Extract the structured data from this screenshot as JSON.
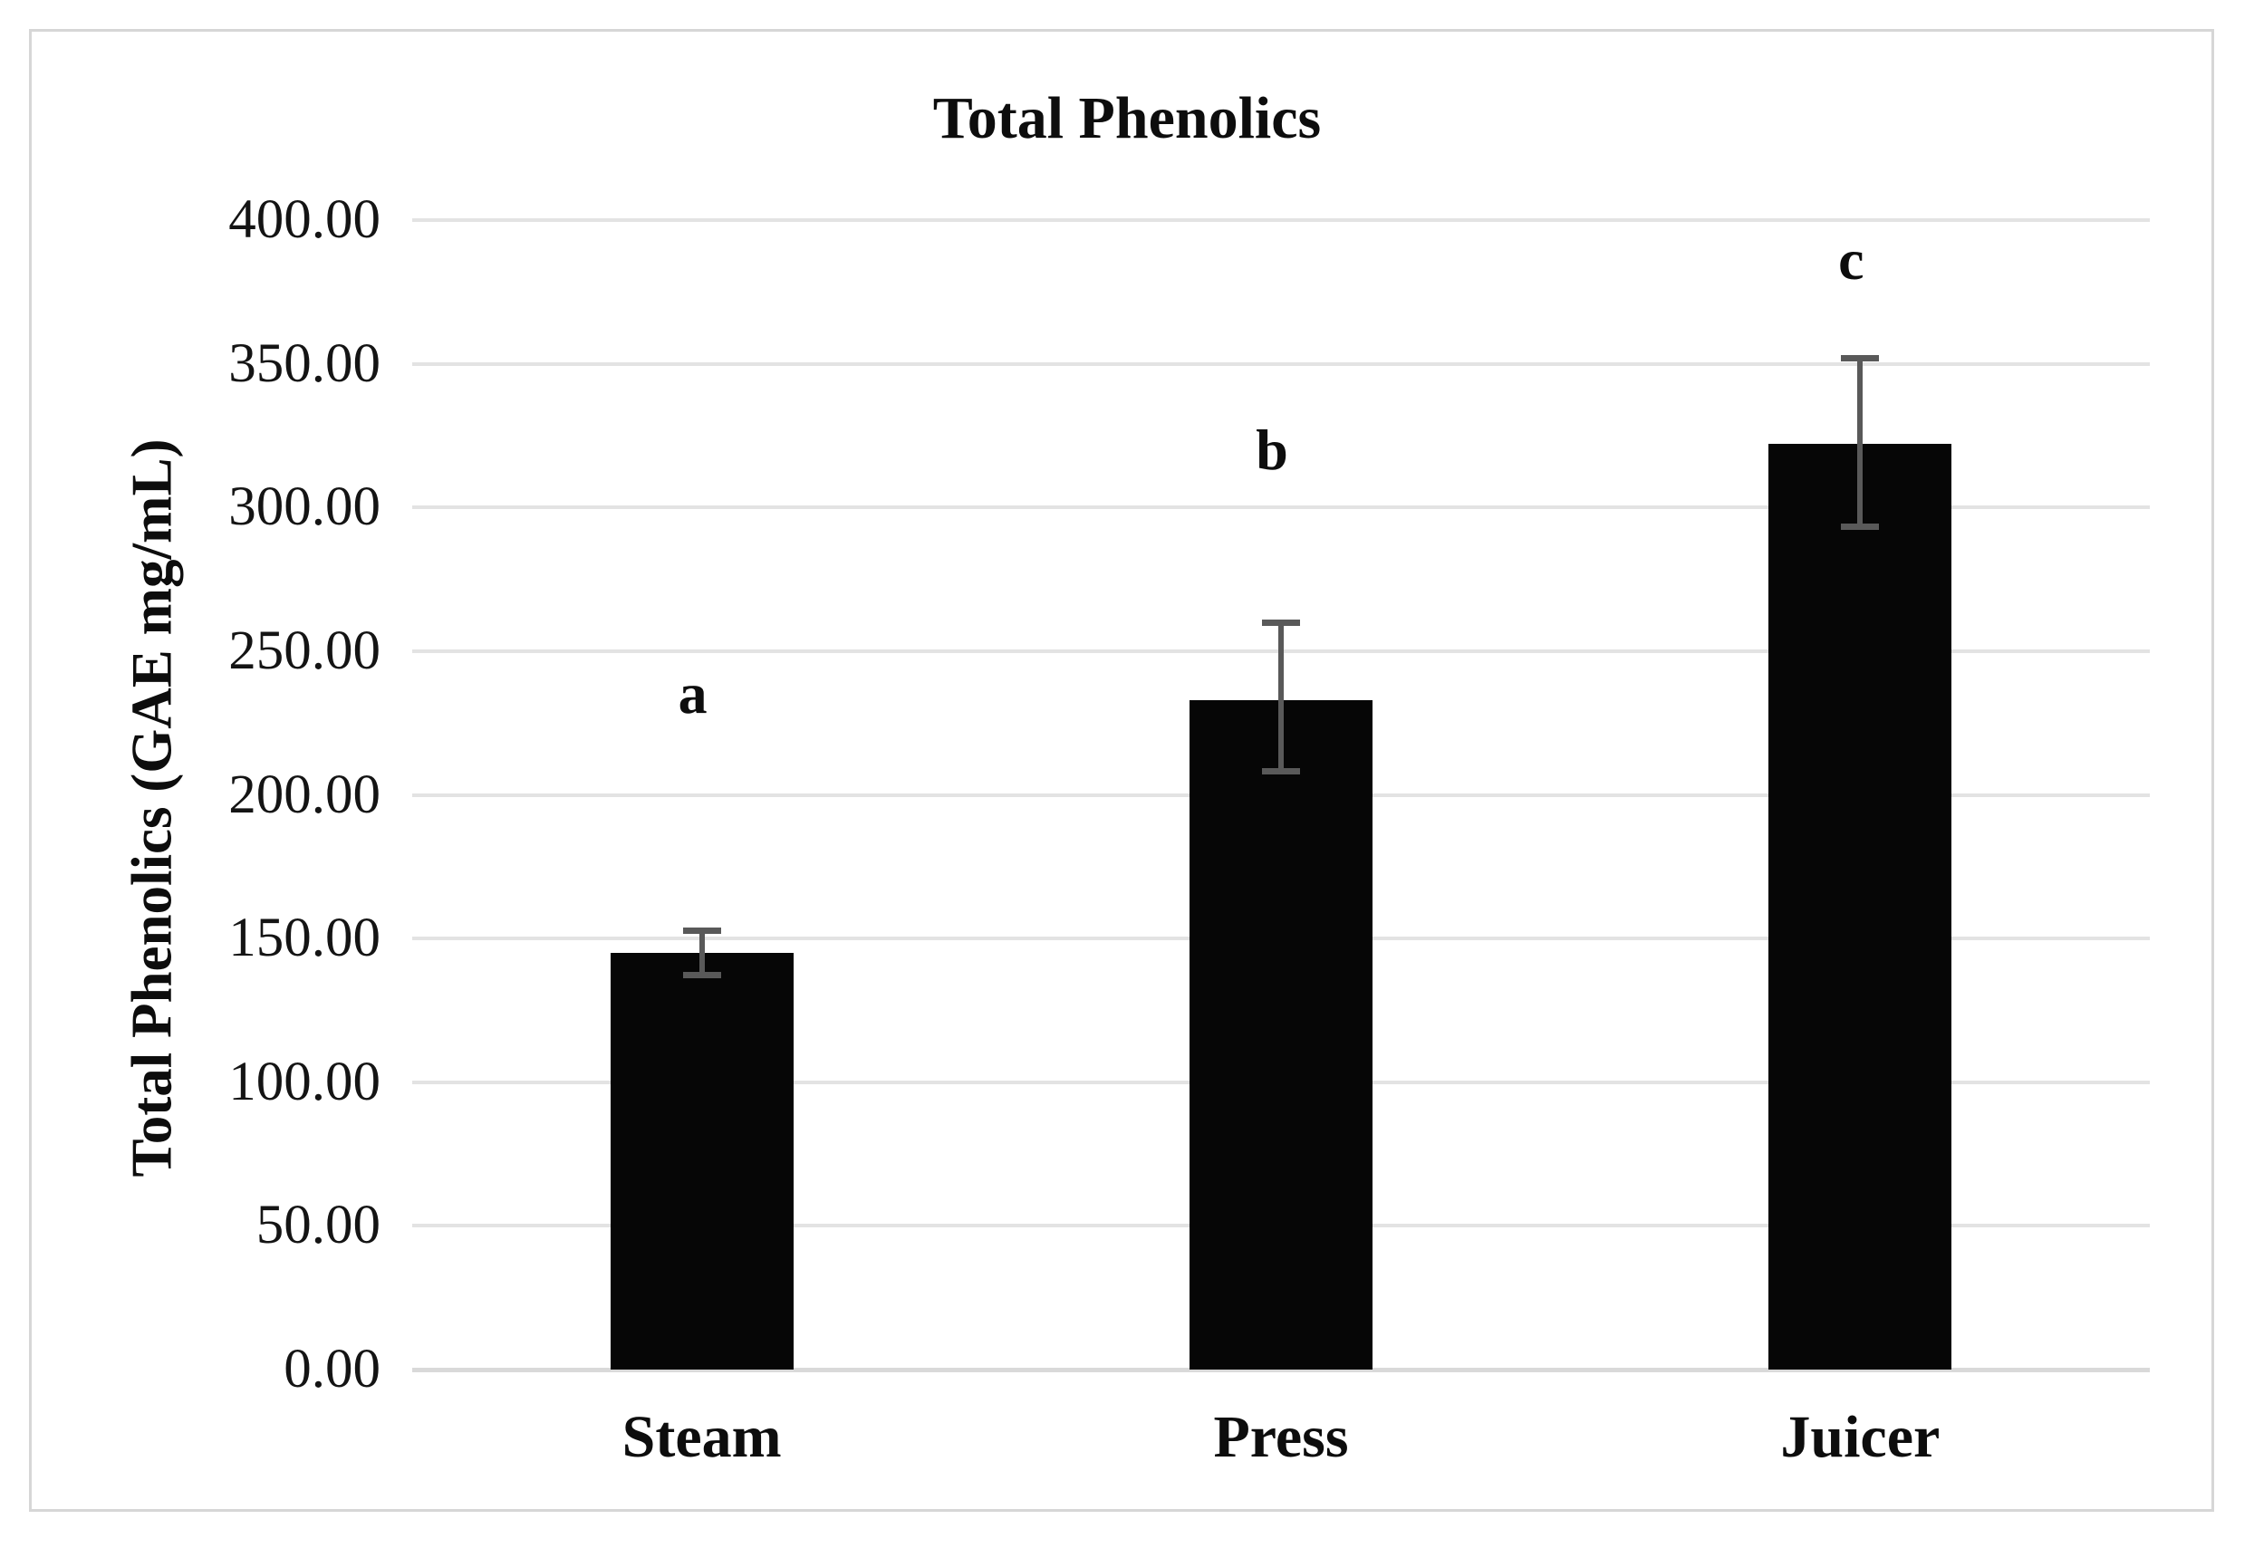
{
  "chart_data": {
    "type": "bar",
    "title": "Total Phenolics",
    "xlabel": "",
    "ylabel": "Total Phenolics (GAE mg/mL)",
    "categories": [
      "Steam",
      "Press",
      "Juicer"
    ],
    "values": [
      145,
      233,
      322
    ],
    "error_bars": {
      "upper": [
        153,
        260,
        352
      ],
      "lower": [
        137,
        208,
        293
      ]
    },
    "annotations": [
      {
        "text": "a",
        "category": "Steam",
        "y": 235
      },
      {
        "text": "b",
        "category": "Press",
        "y": 320
      },
      {
        "text": "c",
        "category": "Juicer",
        "y": 386
      }
    ],
    "ylim": [
      0,
      400
    ],
    "ytick_step": 50,
    "ytick_labels": [
      "0.00",
      "50.00",
      "100.00",
      "150.00",
      "200.00",
      "250.00",
      "300.00",
      "350.00",
      "400.00"
    ],
    "grid": true,
    "legend": "none",
    "colors": {
      "bar": "#060606",
      "error_bar": "#595959",
      "gridline": "#e3e3e3",
      "axis_line": "#d9d9d9",
      "figure_border": "#d6d6d6",
      "text": "#0d0d0d"
    }
  }
}
